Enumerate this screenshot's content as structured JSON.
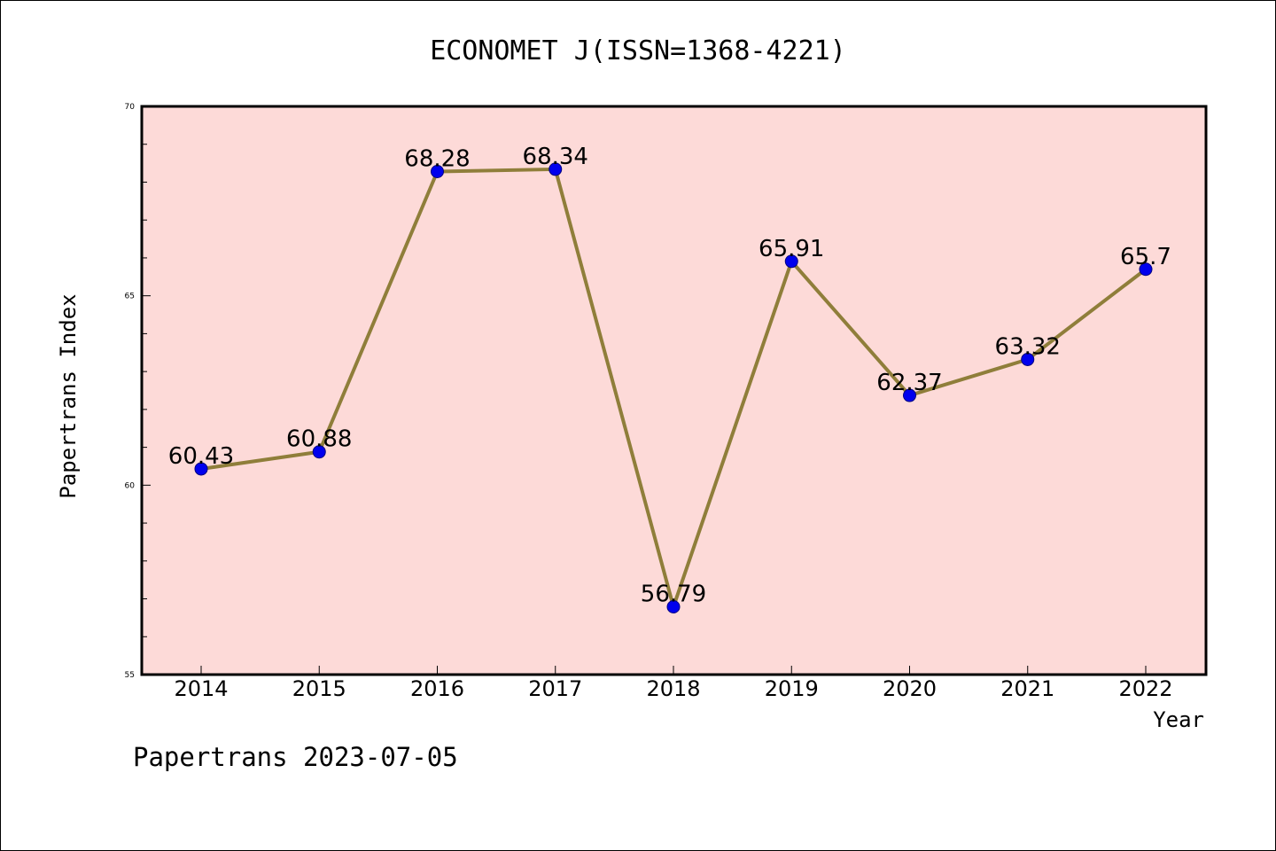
{
  "chart_data": {
    "type": "line",
    "title": "ECONOMET J(ISSN=1368-4221)",
    "xlabel": "Year",
    "ylabel": "Papertrans Index",
    "categories": [
      "2014",
      "2015",
      "2016",
      "2017",
      "2018",
      "2019",
      "2020",
      "2021",
      "2022"
    ],
    "series": [
      {
        "values": [
          60.43,
          60.88,
          68.28,
          68.34,
          56.79,
          65.91,
          62.37,
          63.32,
          65.7
        ],
        "labels": [
          "60.43",
          "60.88",
          "68.28",
          "68.34",
          "56.79",
          "65.91",
          "62.37",
          "63.32",
          "65.7"
        ]
      }
    ],
    "ylim": [
      55,
      70
    ],
    "yticks": [
      "55",
      "60",
      "65",
      "70"
    ],
    "ytick_values": [
      55,
      60,
      65,
      70
    ],
    "grid": false,
    "legend": "none",
    "colors": {
      "plot_background": "#fddad8",
      "line": "#8f7e3a",
      "marker": "#0000ee",
      "marker_edge": "#000080"
    }
  },
  "footer": "Papertrans 2023-07-05"
}
